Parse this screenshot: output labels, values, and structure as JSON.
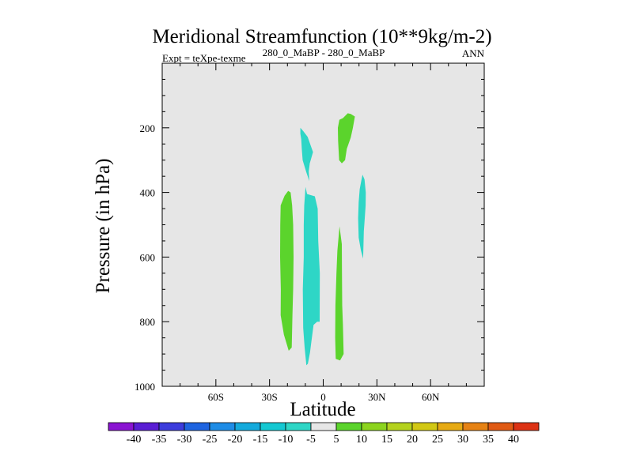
{
  "chart_data": {
    "type": "contour",
    "title": "Meridional Streamfunction (10**9kg/m-2)",
    "left_label": "Expt = teXpe-texme",
    "center_label": "280_0_MaBP - 280_0_MaBP",
    "right_label": "ANN",
    "xlabel": "Latitude",
    "ylabel": "Pressure (in hPa)",
    "xlim": [
      -90,
      90
    ],
    "ylim": [
      1000,
      0
    ],
    "x_ticks": [
      {
        "value": -60,
        "label": "60S"
      },
      {
        "value": -30,
        "label": "30S"
      },
      {
        "value": 0,
        "label": "0"
      },
      {
        "value": 30,
        "label": "30N"
      },
      {
        "value": 60,
        "label": "60N"
      }
    ],
    "y_ticks": [
      {
        "value": 200,
        "label": "200"
      },
      {
        "value": 400,
        "label": "400"
      },
      {
        "value": 600,
        "label": "600"
      },
      {
        "value": 800,
        "label": "800"
      },
      {
        "value": 1000,
        "label": "1000"
      }
    ],
    "background_color": "#e6e6e6",
    "contour_regions": [
      {
        "name": "sh-upper-negative",
        "level_range": "-10 to -5",
        "color": "#2ed6c6",
        "points": [
          [
            -12.8,
            200
          ],
          [
            -11.2,
            210
          ],
          [
            -8.7,
            228
          ],
          [
            -5.7,
            275
          ],
          [
            -7.5,
            310
          ],
          [
            -8.1,
            335
          ],
          [
            -7.8,
            365
          ],
          [
            -9.6,
            335
          ],
          [
            -11.5,
            300
          ],
          [
            -12.0,
            265
          ],
          [
            -12.3,
            235
          ],
          [
            -12.8,
            218
          ]
        ]
      },
      {
        "name": "sh-deep-negative",
        "level_range": "-10 to -5",
        "color": "#2ed6c6",
        "points": [
          [
            -9.9,
            383
          ],
          [
            -9.0,
            405
          ],
          [
            -4.7,
            412
          ],
          [
            -3.1,
            450
          ],
          [
            -2.8,
            550
          ],
          [
            -1.9,
            650
          ],
          [
            -2.0,
            800
          ],
          [
            -3.4,
            800
          ],
          [
            -5.4,
            810
          ],
          [
            -6.8,
            870
          ],
          [
            -7.4,
            895
          ],
          [
            -8.6,
            930
          ],
          [
            -9.4,
            935
          ],
          [
            -10.4,
            880
          ],
          [
            -11.2,
            820
          ],
          [
            -11.4,
            700
          ],
          [
            -10.9,
            600
          ],
          [
            -10.9,
            500
          ],
          [
            -10.6,
            440
          ]
        ]
      },
      {
        "name": "sh-positive",
        "level_range": "5 to 10",
        "color": "#5bd42c",
        "points": [
          [
            -19.6,
            395
          ],
          [
            -18.2,
            400
          ],
          [
            -17.4,
            440
          ],
          [
            -16.8,
            500
          ],
          [
            -16.6,
            600
          ],
          [
            -16.8,
            700
          ],
          [
            -17.2,
            780
          ],
          [
            -17.6,
            880
          ],
          [
            -19.3,
            890
          ],
          [
            -22.0,
            840
          ],
          [
            -23.8,
            780
          ],
          [
            -23.7,
            700
          ],
          [
            -24.1,
            600
          ],
          [
            -24.0,
            500
          ],
          [
            -23.8,
            440
          ],
          [
            -21.6,
            410
          ]
        ]
      },
      {
        "name": "nh-deep-positive",
        "level_range": "5 to 10",
        "color": "#5bd42c",
        "points": [
          [
            9.1,
            505
          ],
          [
            10.4,
            560
          ],
          [
            10.5,
            650
          ],
          [
            10.6,
            750
          ],
          [
            11.0,
            810
          ],
          [
            11.4,
            900
          ],
          [
            9.4,
            920
          ],
          [
            7.0,
            915
          ],
          [
            6.7,
            850
          ],
          [
            6.8,
            750
          ],
          [
            7.4,
            650
          ],
          [
            7.9,
            580
          ],
          [
            8.7,
            530
          ]
        ]
      },
      {
        "name": "nh-upper-positive",
        "level_range": "5 to 10",
        "color": "#5bd42c",
        "points": [
          [
            13.7,
            155
          ],
          [
            15.4,
            157
          ],
          [
            17.7,
            165
          ],
          [
            16.6,
            200
          ],
          [
            15.4,
            230
          ],
          [
            13.2,
            265
          ],
          [
            12.2,
            300
          ],
          [
            10.4,
            310
          ],
          [
            8.9,
            300
          ],
          [
            8.3,
            240
          ],
          [
            8.2,
            200
          ],
          [
            9.0,
            175
          ],
          [
            11.0,
            170
          ]
        ]
      },
      {
        "name": "nh-mid-negative",
        "level_range": "-10 to -5",
        "color": "#2ed6c6",
        "points": [
          [
            22.0,
            345
          ],
          [
            23.1,
            360
          ],
          [
            23.8,
            400
          ],
          [
            23.7,
            440
          ],
          [
            23.2,
            480
          ],
          [
            22.7,
            520
          ],
          [
            22.5,
            560
          ],
          [
            22.3,
            605
          ],
          [
            21.1,
            580
          ],
          [
            19.8,
            540
          ],
          [
            19.5,
            480
          ],
          [
            19.8,
            430
          ],
          [
            20.4,
            390
          ],
          [
            21.4,
            360
          ]
        ]
      }
    ],
    "colorbar": {
      "levels": [
        "-40",
        "-35",
        "-30",
        "-25",
        "-20",
        "-15",
        "-10",
        "-5",
        "5",
        "10",
        "15",
        "20",
        "25",
        "30",
        "35",
        "40"
      ],
      "colors": [
        "#8a14d2",
        "#5a1ed4",
        "#3c3cdc",
        "#1e64e0",
        "#1e8ce6",
        "#14aadc",
        "#14c8d2",
        "#2ed6c6",
        "#e6e6e6",
        "#5bd42c",
        "#8cd41e",
        "#b4d21e",
        "#d2c814",
        "#e6aa14",
        "#e68214",
        "#e05a14",
        "#dc3214"
      ]
    }
  }
}
